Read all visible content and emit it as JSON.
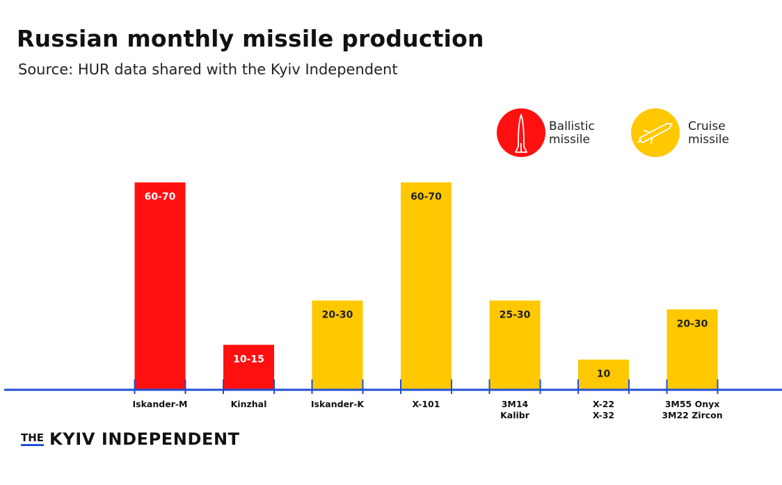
{
  "chart_data": {
    "type": "bar",
    "title": "Russian monthly missile production",
    "subtitle": "Source: HUR data shared with the Kyiv Independent",
    "categories": [
      [
        "Iskander-M"
      ],
      [
        "Kinzhal"
      ],
      [
        "Iskander-K"
      ],
      [
        "X-101"
      ],
      [
        "3M14",
        "Kalibr"
      ],
      [
        "X-22",
        "X-32"
      ],
      [
        "3M55 Onyx",
        "3M22 Zircon"
      ]
    ],
    "values": [
      70,
      15,
      30,
      70,
      30,
      10,
      27
    ],
    "value_labels": [
      "60-70",
      "10-15",
      "20-30",
      "60-70",
      "25-30",
      "10",
      "20-30"
    ],
    "types": [
      "ballistic",
      "ballistic",
      "cruise",
      "cruise",
      "cruise",
      "cruise",
      "cruise"
    ],
    "ylim": [
      0,
      72
    ],
    "grid": false,
    "legend": {
      "placement": "top-right",
      "items": [
        {
          "key": "ballistic",
          "label_line1": "Ballistic",
          "label_line2": "missile",
          "color": "#ff1010",
          "icon": "ballistic-missile-icon"
        },
        {
          "key": "cruise",
          "label_line1": "Cruise",
          "label_line2": "missile",
          "color": "#ffc800",
          "icon": "cruise-missile-icon"
        }
      ]
    },
    "colors": {
      "ballistic": "#ff1010",
      "cruise": "#ffc800",
      "axis": "#1f4fd6"
    }
  },
  "branding": {
    "logo_the": "THE",
    "logo_name": "KYIV INDEPENDENT"
  }
}
